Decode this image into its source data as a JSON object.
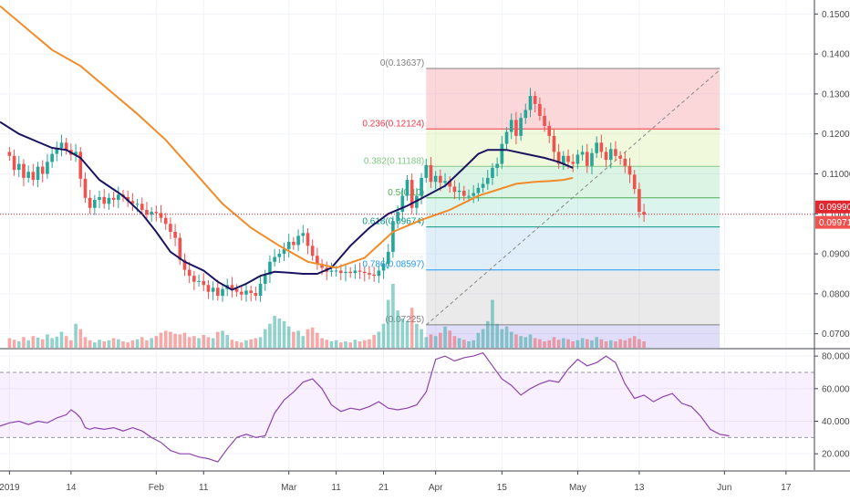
{
  "chart_data": [
    {
      "type": "candlestick",
      "panel": "price",
      "x_axis": {
        "labels": [
          "2019",
          "14",
          "Feb",
          "11",
          "Mar",
          "11",
          "21",
          "Apr",
          "15",
          "May",
          "13",
          "Jun",
          "17"
        ],
        "label_positions_days": [
          0,
          13,
          31,
          41,
          59,
          69,
          79,
          90,
          104,
          120,
          133,
          151,
          164
        ],
        "range_days": [
          -2,
          170
        ]
      },
      "y_axis": {
        "ticks": [
          "0.15000",
          "0.14000",
          "0.13000",
          "0.12000",
          "0.11000",
          "0.10000",
          "0.09000",
          "0.08000",
          "0.07000"
        ],
        "tick_values": [
          0.15,
          0.14,
          0.13,
          0.12,
          0.11,
          0.1,
          0.09,
          0.08,
          0.07
        ],
        "ylim": [
          0.0665,
          0.1535
        ]
      },
      "series": [
        {
          "kind": "candles",
          "up_color": "#26a69a",
          "down_color": "#ef5350",
          "closes": [
            0.1145,
            0.111,
            0.1125,
            0.109,
            0.1105,
            0.1085,
            0.1118,
            0.11,
            0.113,
            0.115,
            0.1165,
            0.1178,
            0.116,
            0.1148,
            0.1155,
            0.1088,
            0.104,
            0.1015,
            0.1035,
            0.1042,
            0.1025,
            0.104,
            0.1035,
            0.1048,
            0.1042,
            0.1032,
            0.1025,
            0.1025,
            0.101,
            0.0998,
            0.1005,
            0.1002,
            0.099,
            0.0975,
            0.0955,
            0.094,
            0.0885,
            0.086,
            0.0845,
            0.083,
            0.0832,
            0.0822,
            0.0805,
            0.0815,
            0.0795,
            0.0812,
            0.0822,
            0.0812,
            0.0805,
            0.0798,
            0.0808,
            0.0802,
            0.0795,
            0.0825,
            0.0848,
            0.088,
            0.0892,
            0.09,
            0.0912,
            0.093,
            0.0922,
            0.0945,
            0.0952,
            0.092,
            0.0895,
            0.0875,
            0.0865,
            0.0855,
            0.0858,
            0.0858,
            0.0852,
            0.0855,
            0.0852,
            0.0858,
            0.0855,
            0.0852,
            0.0848,
            0.0845,
            0.0858,
            0.0875,
            0.0905,
            0.0982,
            0.1005,
            0.1045,
            0.1085,
            0.1015,
            0.1045,
            0.109,
            0.1122,
            0.108,
            0.1095,
            0.1078,
            0.1082,
            0.1068,
            0.1055,
            0.1058,
            0.1045,
            0.1045,
            0.1052,
            0.1065,
            0.1075,
            0.109,
            0.1115,
            0.1125,
            0.1175,
            0.1205,
            0.1235,
            0.1195,
            0.124,
            0.126,
            0.1295,
            0.1275,
            0.1245,
            0.122,
            0.1195,
            0.1155,
            0.1125,
            0.1145,
            0.113,
            0.1125,
            0.1148,
            0.1155,
            0.112,
            0.1152,
            0.1178,
            0.1155,
            0.1135,
            0.1162,
            0.1145,
            0.1138,
            0.112,
            0.1098,
            0.1062,
            0.1005,
            0.0998
          ],
          "volumes": [
            18,
            15,
            12,
            20,
            14,
            22,
            19,
            16,
            25,
            18,
            21,
            30,
            22,
            14,
            45,
            35,
            20,
            14,
            10,
            15,
            12,
            14,
            18,
            16,
            12,
            10,
            14,
            16,
            20,
            14,
            18,
            22,
            28,
            32,
            30,
            26,
            25,
            28,
            20,
            22,
            18,
            24,
            20,
            18,
            30,
            32,
            24,
            15,
            12,
            10,
            14,
            16,
            18,
            20,
            35,
            45,
            60,
            55,
            50,
            40,
            30,
            32,
            22,
            35,
            38,
            28,
            18,
            15,
            12,
            14,
            10,
            12,
            10,
            15,
            12,
            14,
            16,
            24,
            30,
            45,
            90,
            120,
            70,
            55,
            50,
            75,
            45,
            35,
            20,
            25,
            22,
            28,
            40,
            32,
            22,
            18,
            15,
            12,
            14,
            28,
            35,
            50,
            90,
            45,
            35,
            40,
            30,
            25,
            22,
            20,
            25,
            18,
            16,
            12,
            14,
            20,
            15,
            18,
            16,
            12,
            14,
            18,
            16,
            14,
            20,
            16,
            12,
            14,
            12,
            16,
            14,
            18,
            22,
            16,
            12
          ]
        },
        {
          "kind": "line",
          "name": "",
          "color": "#1a1560",
          "points": [
            [
              -2,
              0.123
            ],
            [
              2,
              0.12
            ],
            [
              6,
              0.118
            ],
            [
              9,
              0.1165
            ],
            [
              12,
              0.116
            ],
            [
              15,
              0.114
            ],
            [
              19,
              0.1085
            ],
            [
              24,
              0.1045
            ],
            [
              28,
              0.1
            ],
            [
              31,
              0.0955
            ],
            [
              34,
              0.0905
            ],
            [
              37,
              0.088
            ],
            [
              41,
              0.0858
            ],
            [
              44,
              0.083
            ],
            [
              47,
              0.081
            ],
            [
              50,
              0.0825
            ],
            [
              53,
              0.0845
            ],
            [
              56,
              0.0855
            ],
            [
              59,
              0.0853
            ],
            [
              62,
              0.085
            ],
            [
              65,
              0.085
            ],
            [
              68,
              0.0865
            ],
            [
              72,
              0.092
            ],
            [
              76,
              0.0965
            ],
            [
              80,
              0.1
            ],
            [
              84,
              0.102
            ],
            [
              88,
              0.1045
            ],
            [
              92,
              0.107
            ],
            [
              96,
              0.1115
            ],
            [
              99,
              0.115
            ],
            [
              101,
              0.116
            ],
            [
              105,
              0.116
            ],
            [
              109,
              0.115
            ],
            [
              113,
              0.114
            ],
            [
              116,
              0.113
            ],
            [
              119,
              0.1115
            ]
          ]
        },
        {
          "kind": "line",
          "name": "",
          "color": "#f08c2a",
          "points": [
            [
              -2,
              0.152
            ],
            [
              3,
              0.147
            ],
            [
              9,
              0.141
            ],
            [
              15,
              0.137
            ],
            [
              21,
              0.131
            ],
            [
              27,
              0.125
            ],
            [
              33,
              0.1185
            ],
            [
              39,
              0.1105
            ],
            [
              45,
              0.1025
            ],
            [
              51,
              0.0965
            ],
            [
              57,
              0.092
            ],
            [
              63,
              0.088
            ],
            [
              69,
              0.0865
            ],
            [
              75,
              0.089
            ],
            [
              81,
              0.0955
            ],
            [
              87,
              0.0985
            ],
            [
              93,
              0.101
            ],
            [
              99,
              0.1045
            ],
            [
              103,
              0.106
            ],
            [
              107,
              0.1075
            ],
            [
              111,
              0.108
            ],
            [
              114,
              0.1082
            ],
            [
              117,
              0.1085
            ],
            [
              119,
              0.109
            ]
          ]
        }
      ],
      "fibonacci": {
        "levels": [
          {
            "ratio": "0",
            "price": "0.13637",
            "value": 0.13637,
            "color": "#808080",
            "zone": "rgba(242,54,69,0.2)"
          },
          {
            "ratio": "0.236",
            "price": "0.12124",
            "value": 0.12124,
            "color": "#f23645",
            "zone": "rgba(200,230,120,0.25)"
          },
          {
            "ratio": "0.382",
            "price": "0.11188",
            "value": 0.11188,
            "color": "#81c784",
            "zone": "rgba(80,200,120,0.2)"
          },
          {
            "ratio": "0.5",
            "price": "0.10",
            "value": 0.104,
            "color": "#4caf50",
            "zone": "rgba(80,200,170,0.2)"
          },
          {
            "ratio": "0.618",
            "price": "0.09674",
            "value": 0.09674,
            "color": "#089981",
            "zone": "rgba(100,170,230,0.2)"
          },
          {
            "ratio": "0.786",
            "price": "0.08597",
            "value": 0.08597,
            "color": "#2196f3",
            "zone": "rgba(150,150,150,0.2)"
          },
          {
            "ratio": "",
            "price": "0.07225",
            "value": 0.07225,
            "color": "#808080",
            "zone": "rgba(130,120,230,0.25)"
          }
        ],
        "start_day": 88,
        "end_day": 150,
        "zone_bottom_value": 0.0665
      },
      "diagonal": [
        [
          88,
          0.0722
        ],
        [
          150,
          0.136
        ]
      ],
      "price_lines": [
        {
          "label": "0.09990",
          "value": 0.0999,
          "color": "#e0262f"
        },
        {
          "label": "0.09971",
          "value": 0.0997,
          "color": "#ef5350"
        }
      ]
    },
    {
      "type": "line",
      "panel": "oscillator",
      "y_axis": {
        "ticks": [
          "80.0000",
          "60.0000",
          "40.0000",
          "20.0000"
        ],
        "tick_values": [
          80,
          60,
          40,
          20
        ],
        "ylim": [
          10,
          84
        ]
      },
      "band": {
        "upper": 70,
        "lower": 30,
        "middle": 50,
        "fill": "rgba(200,120,255,0.12)"
      },
      "line_color": "#8e44ad",
      "points": [
        [
          -2,
          37
        ],
        [
          0,
          39
        ],
        [
          2,
          40
        ],
        [
          4,
          38
        ],
        [
          6,
          40
        ],
        [
          8,
          39
        ],
        [
          10,
          42
        ],
        [
          12,
          44
        ],
        [
          13,
          47
        ],
        [
          14,
          45
        ],
        [
          15,
          42
        ],
        [
          16,
          36
        ],
        [
          17,
          35
        ],
        [
          18,
          36
        ],
        [
          20,
          35
        ],
        [
          22,
          36
        ],
        [
          24,
          34
        ],
        [
          26,
          36
        ],
        [
          28,
          34
        ],
        [
          30,
          30
        ],
        [
          32,
          27
        ],
        [
          34,
          22
        ],
        [
          36,
          20
        ],
        [
          38,
          20
        ],
        [
          40,
          18
        ],
        [
          42,
          17
        ],
        [
          44,
          15
        ],
        [
          46,
          23
        ],
        [
          48,
          30
        ],
        [
          50,
          32
        ],
        [
          52,
          30
        ],
        [
          54,
          31
        ],
        [
          56,
          45
        ],
        [
          58,
          53
        ],
        [
          60,
          58
        ],
        [
          62,
          64
        ],
        [
          64,
          66
        ],
        [
          66,
          60
        ],
        [
          68,
          50
        ],
        [
          70,
          46
        ],
        [
          72,
          48
        ],
        [
          74,
          47
        ],
        [
          76,
          49
        ],
        [
          78,
          52
        ],
        [
          80,
          48
        ],
        [
          82,
          47
        ],
        [
          84,
          48
        ],
        [
          86,
          50
        ],
        [
          88,
          58
        ],
        [
          90,
          78
        ],
        [
          92,
          80
        ],
        [
          94,
          77
        ],
        [
          96,
          79
        ],
        [
          98,
          80
        ],
        [
          100,
          82
        ],
        [
          102,
          74
        ],
        [
          104,
          66
        ],
        [
          106,
          62
        ],
        [
          108,
          56
        ],
        [
          110,
          60
        ],
        [
          112,
          63
        ],
        [
          114,
          65
        ],
        [
          116,
          64
        ],
        [
          118,
          72
        ],
        [
          120,
          78
        ],
        [
          122,
          74
        ],
        [
          124,
          76
        ],
        [
          126,
          80
        ],
        [
          128,
          76
        ],
        [
          130,
          63
        ],
        [
          132,
          54
        ],
        [
          134,
          56
        ],
        [
          136,
          52
        ],
        [
          138,
          55
        ],
        [
          140,
          57
        ],
        [
          142,
          51
        ],
        [
          144,
          49
        ],
        [
          146,
          43
        ],
        [
          148,
          35
        ],
        [
          150,
          32
        ],
        [
          152,
          31
        ]
      ]
    }
  ]
}
